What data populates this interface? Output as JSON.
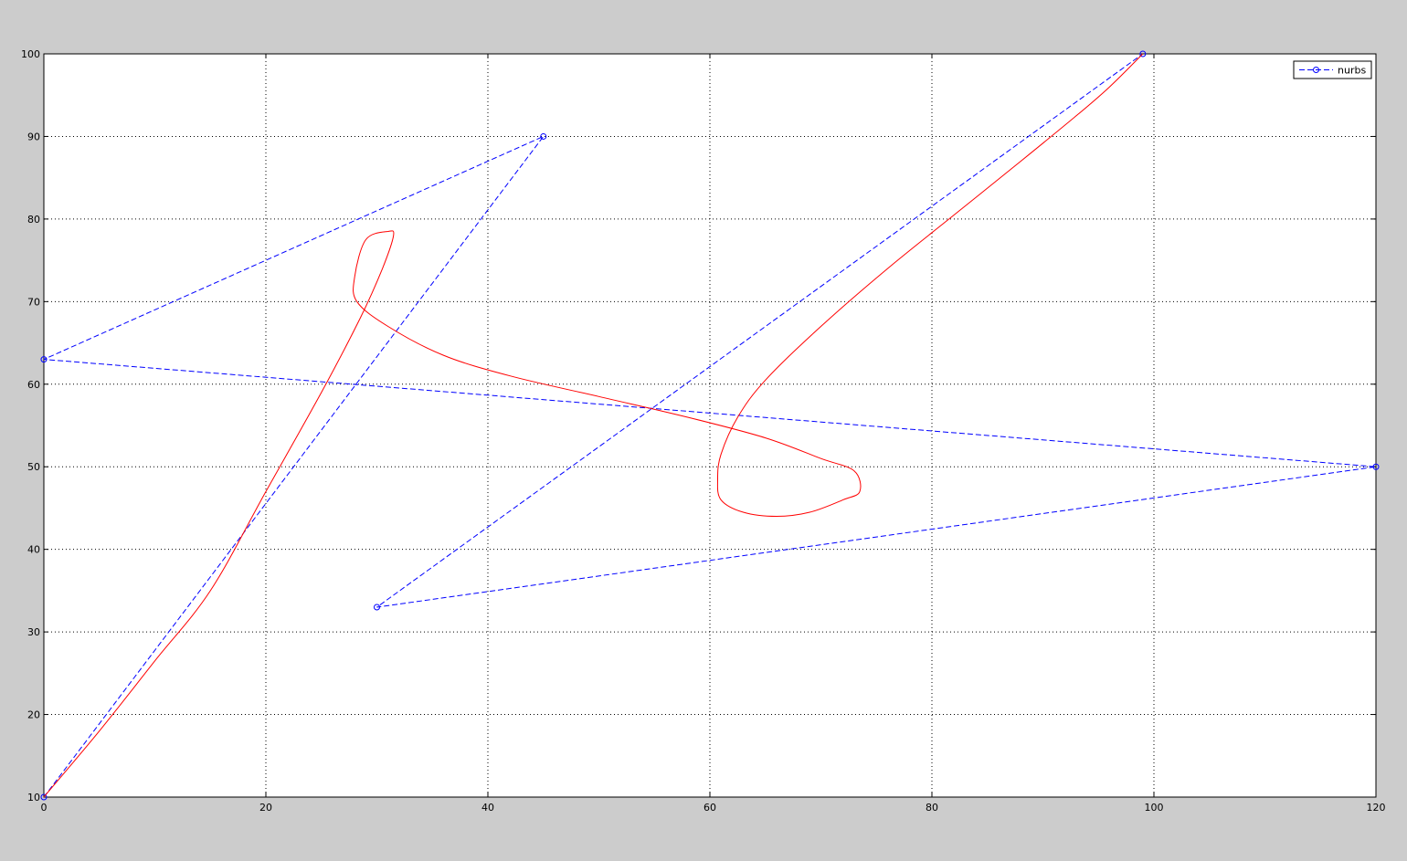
{
  "chart_data": {
    "type": "line",
    "xlim": [
      0,
      120
    ],
    "ylim": [
      10,
      100
    ],
    "x_ticks": [
      0,
      20,
      40,
      60,
      80,
      100,
      120
    ],
    "y_ticks": [
      10,
      20,
      30,
      40,
      50,
      60,
      70,
      80,
      90,
      100
    ],
    "grid": true,
    "legend_position": "top-right",
    "series": [
      {
        "name": "nurbs",
        "style": "dashed-circle-markers",
        "color": "#0000ff",
        "x": [
          0,
          0,
          45,
          30,
          99,
          120
        ],
        "y": [
          10,
          63,
          90,
          33,
          100,
          50
        ],
        "points": [
          [
            0,
            10
          ],
          [
            45,
            90
          ],
          [
            0,
            63
          ],
          [
            120,
            50
          ],
          [
            30,
            33
          ],
          [
            99,
            100
          ]
        ]
      },
      {
        "style": "solid",
        "color": "#ff0000",
        "points": [
          [
            0,
            10
          ],
          [
            5,
            18
          ],
          [
            10,
            26.5
          ],
          [
            15,
            35
          ],
          [
            20,
            47
          ],
          [
            25,
            59
          ],
          [
            28.5,
            68
          ],
          [
            30.5,
            74
          ],
          [
            31.5,
            78
          ],
          [
            31,
            78.5
          ],
          [
            29,
            77.5
          ],
          [
            28,
            73
          ],
          [
            28.2,
            70
          ],
          [
            31,
            67
          ],
          [
            36,
            63.5
          ],
          [
            42,
            61
          ],
          [
            50,
            58.5
          ],
          [
            58,
            56
          ],
          [
            65,
            53.5
          ],
          [
            70,
            51
          ],
          [
            73,
            49.5
          ],
          [
            73.5,
            47
          ],
          [
            72,
            46
          ],
          [
            69,
            44.5
          ],
          [
            66,
            44
          ],
          [
            63,
            44.5
          ],
          [
            61,
            46
          ],
          [
            60.7,
            48.5
          ],
          [
            61,
            51.5
          ],
          [
            62.5,
            56
          ],
          [
            65,
            60.5
          ],
          [
            70,
            67
          ],
          [
            76,
            74
          ],
          [
            82,
            80.5
          ],
          [
            88,
            87
          ],
          [
            93,
            92.5
          ],
          [
            96,
            96
          ],
          [
            99,
            100
          ]
        ]
      }
    ]
  }
}
